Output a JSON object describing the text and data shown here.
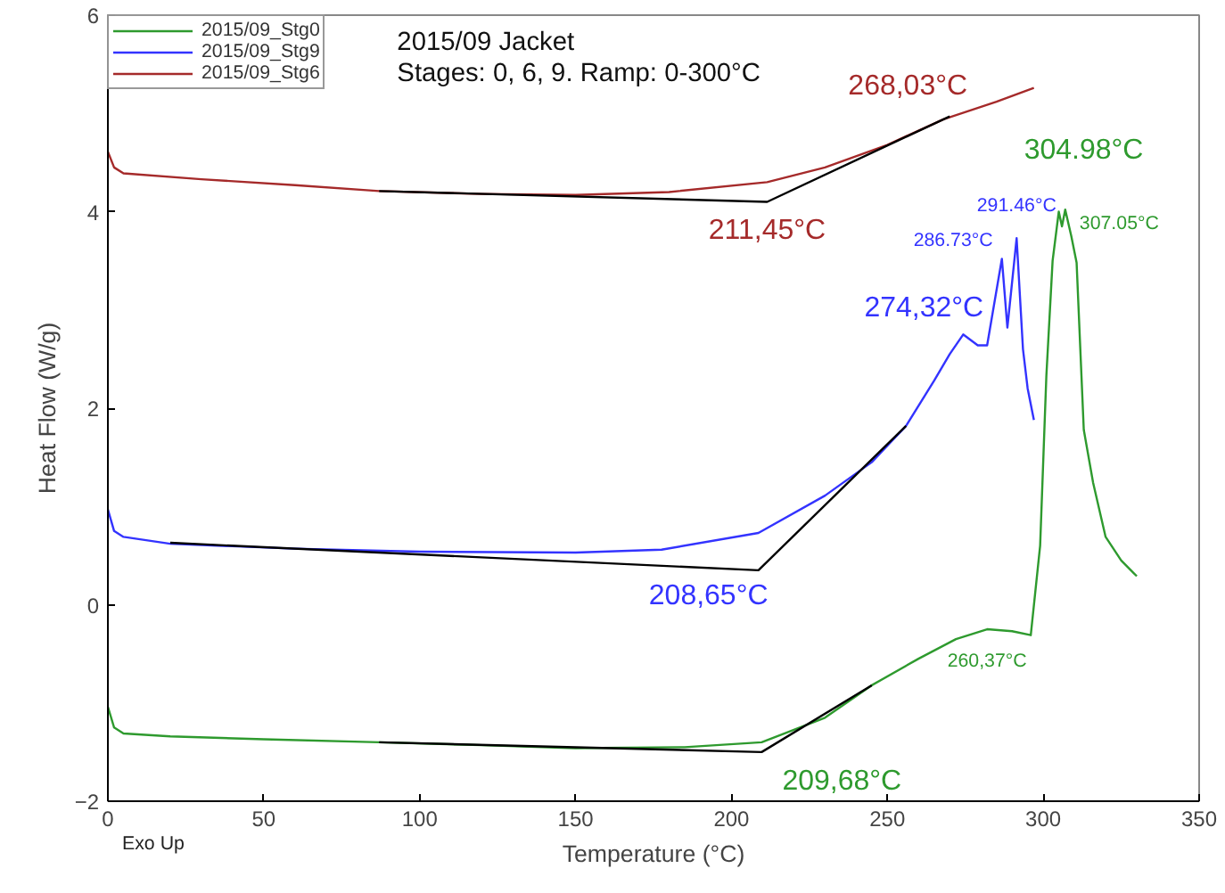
{
  "chart_data": {
    "type": "line",
    "title": "2015/09 Jacket",
    "subtitle": "Stages: 0, 6, 9. Ramp: 0-300°C",
    "xlabel": "Temperature (°C)",
    "ylabel": "Heat Flow (W/g)",
    "xlim": [
      0,
      350
    ],
    "xticks": [
      0,
      50,
      100,
      150,
      200,
      250,
      300,
      350
    ],
    "ylim": [
      -2,
      6
    ],
    "yticks": [
      -2,
      0,
      2,
      4,
      6
    ],
    "grid": false,
    "legend": "top left",
    "marker": "none",
    "line_style": "solid",
    "series": [
      {
        "name": "2015/09_Stg0",
        "color": "#2e9a2e",
        "x": [
          0,
          2,
          5,
          20,
          50,
          87,
          120,
          150,
          185,
          209.68,
          230,
          245,
          260,
          272,
          282,
          290,
          296,
          299,
          301,
          303,
          304.98,
          306,
          307.05,
          309,
          310.7,
          313,
          316,
          320,
          325,
          330
        ],
        "values": [
          -1.04,
          -1.25,
          -1.31,
          -1.34,
          -1.37,
          -1.4,
          -1.43,
          -1.46,
          -1.45,
          -1.4,
          -1.15,
          -0.82,
          -0.55,
          -0.35,
          -0.25,
          -0.27,
          -0.31,
          0.6,
          2.33,
          3.5,
          4.0,
          3.85,
          4.02,
          3.75,
          3.48,
          1.78,
          1.24,
          0.69,
          0.45,
          0.29
        ]
      },
      {
        "name": "2015/09_Stg9",
        "color": "#3333ff",
        "x": [
          0,
          2,
          5,
          20,
          60,
          100,
          150,
          177.6,
          208.65,
          230,
          245,
          256,
          265,
          270,
          274.32,
          279,
          282,
          286.73,
          288.5,
          291.46,
          293.5,
          295,
          297
        ],
        "values": [
          0.97,
          0.75,
          0.69,
          0.62,
          0.57,
          0.54,
          0.53,
          0.56,
          0.73,
          1.11,
          1.45,
          1.82,
          2.28,
          2.55,
          2.75,
          2.64,
          2.64,
          3.52,
          2.82,
          3.73,
          2.6,
          2.2,
          1.88
        ]
      },
      {
        "name": "2015/09_Stg6",
        "color": "#a52a2a",
        "x": [
          0,
          2,
          5,
          30,
          60,
          87,
          120,
          150,
          180,
          211.45,
          230,
          250,
          268,
          285,
          297
        ],
        "values": [
          4.61,
          4.45,
          4.39,
          4.33,
          4.27,
          4.21,
          4.18,
          4.17,
          4.2,
          4.3,
          4.45,
          4.68,
          4.94,
          5.12,
          5.26
        ]
      },
      {
        "color": "#000000",
        "x": [
          87,
          211.45,
          270
        ],
        "values": [
          4.21,
          4.1,
          4.97
        ]
      },
      {
        "color": "#000000",
        "x": [
          20,
          208.65,
          256
        ],
        "values": [
          0.63,
          0.35,
          1.82
        ]
      },
      {
        "color": "#000000",
        "x": [
          87,
          209.68,
          245
        ],
        "values": [
          -1.4,
          -1.5,
          -0.82
        ]
      }
    ],
    "annotations": [
      {
        "text": "268,03°C",
        "x": 268,
        "y": 4.94
      },
      {
        "text": "211,45°C",
        "x": 211.45,
        "y": 4.1
      },
      {
        "text": "274,32°C",
        "x": 274.32,
        "y": 2.75
      },
      {
        "text": "286.73°C",
        "x": 286.73,
        "y": 3.52
      },
      {
        "text": "291.46°C",
        "x": 291.46,
        "y": 3.73
      },
      {
        "text": "304.98°C",
        "x": 304.98,
        "y": 4.0
      },
      {
        "text": "307.05°C",
        "x": 307.05,
        "y": 4.02
      },
      {
        "text": "260,37°C",
        "x": 282,
        "y": -0.25
      },
      {
        "text": "208,65°C",
        "x": 208.65,
        "y": 0.35
      },
      {
        "text": "209,68°C",
        "x": 209.68,
        "y": -1.5
      },
      "Exo Up"
    ]
  }
}
